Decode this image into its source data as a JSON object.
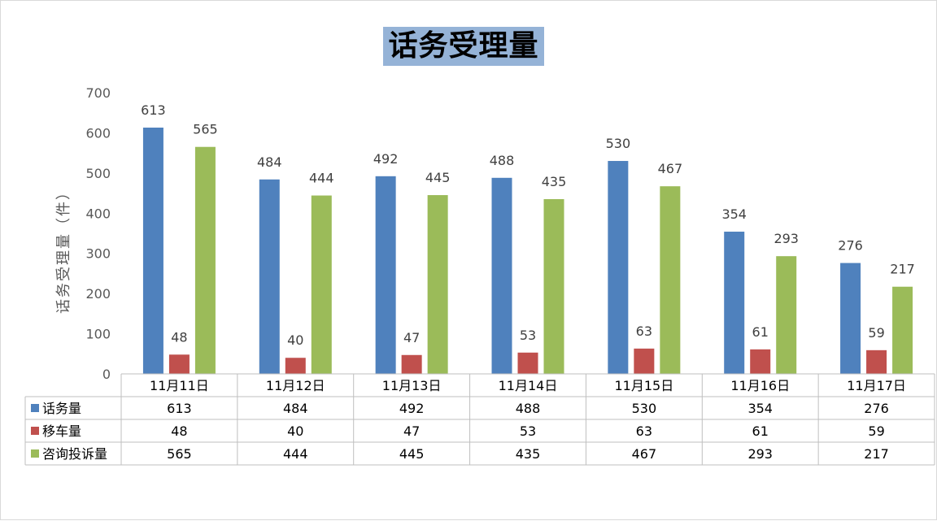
{
  "chart_data": {
    "type": "bar",
    "title": "话务受理量",
    "ylabel": "话务受理量（件）",
    "ylim": [
      0,
      700
    ],
    "yticks": [
      0,
      100,
      200,
      300,
      400,
      500,
      600,
      700
    ],
    "categories": [
      "11月11日",
      "11月12日",
      "11月13日",
      "11月14日",
      "11月15日",
      "11月16日",
      "11月17日"
    ],
    "series": [
      {
        "name": "话务量",
        "color": "#4f81bd",
        "values": [
          613,
          484,
          492,
          488,
          530,
          354,
          276
        ]
      },
      {
        "name": "移车量",
        "color": "#c0504d",
        "values": [
          48,
          40,
          47,
          53,
          63,
          61,
          59
        ]
      },
      {
        "name": "咨询投诉量",
        "color": "#9bbb59",
        "values": [
          565,
          444,
          445,
          435,
          467,
          293,
          217
        ]
      }
    ],
    "grid": false,
    "legend": "data-table"
  }
}
